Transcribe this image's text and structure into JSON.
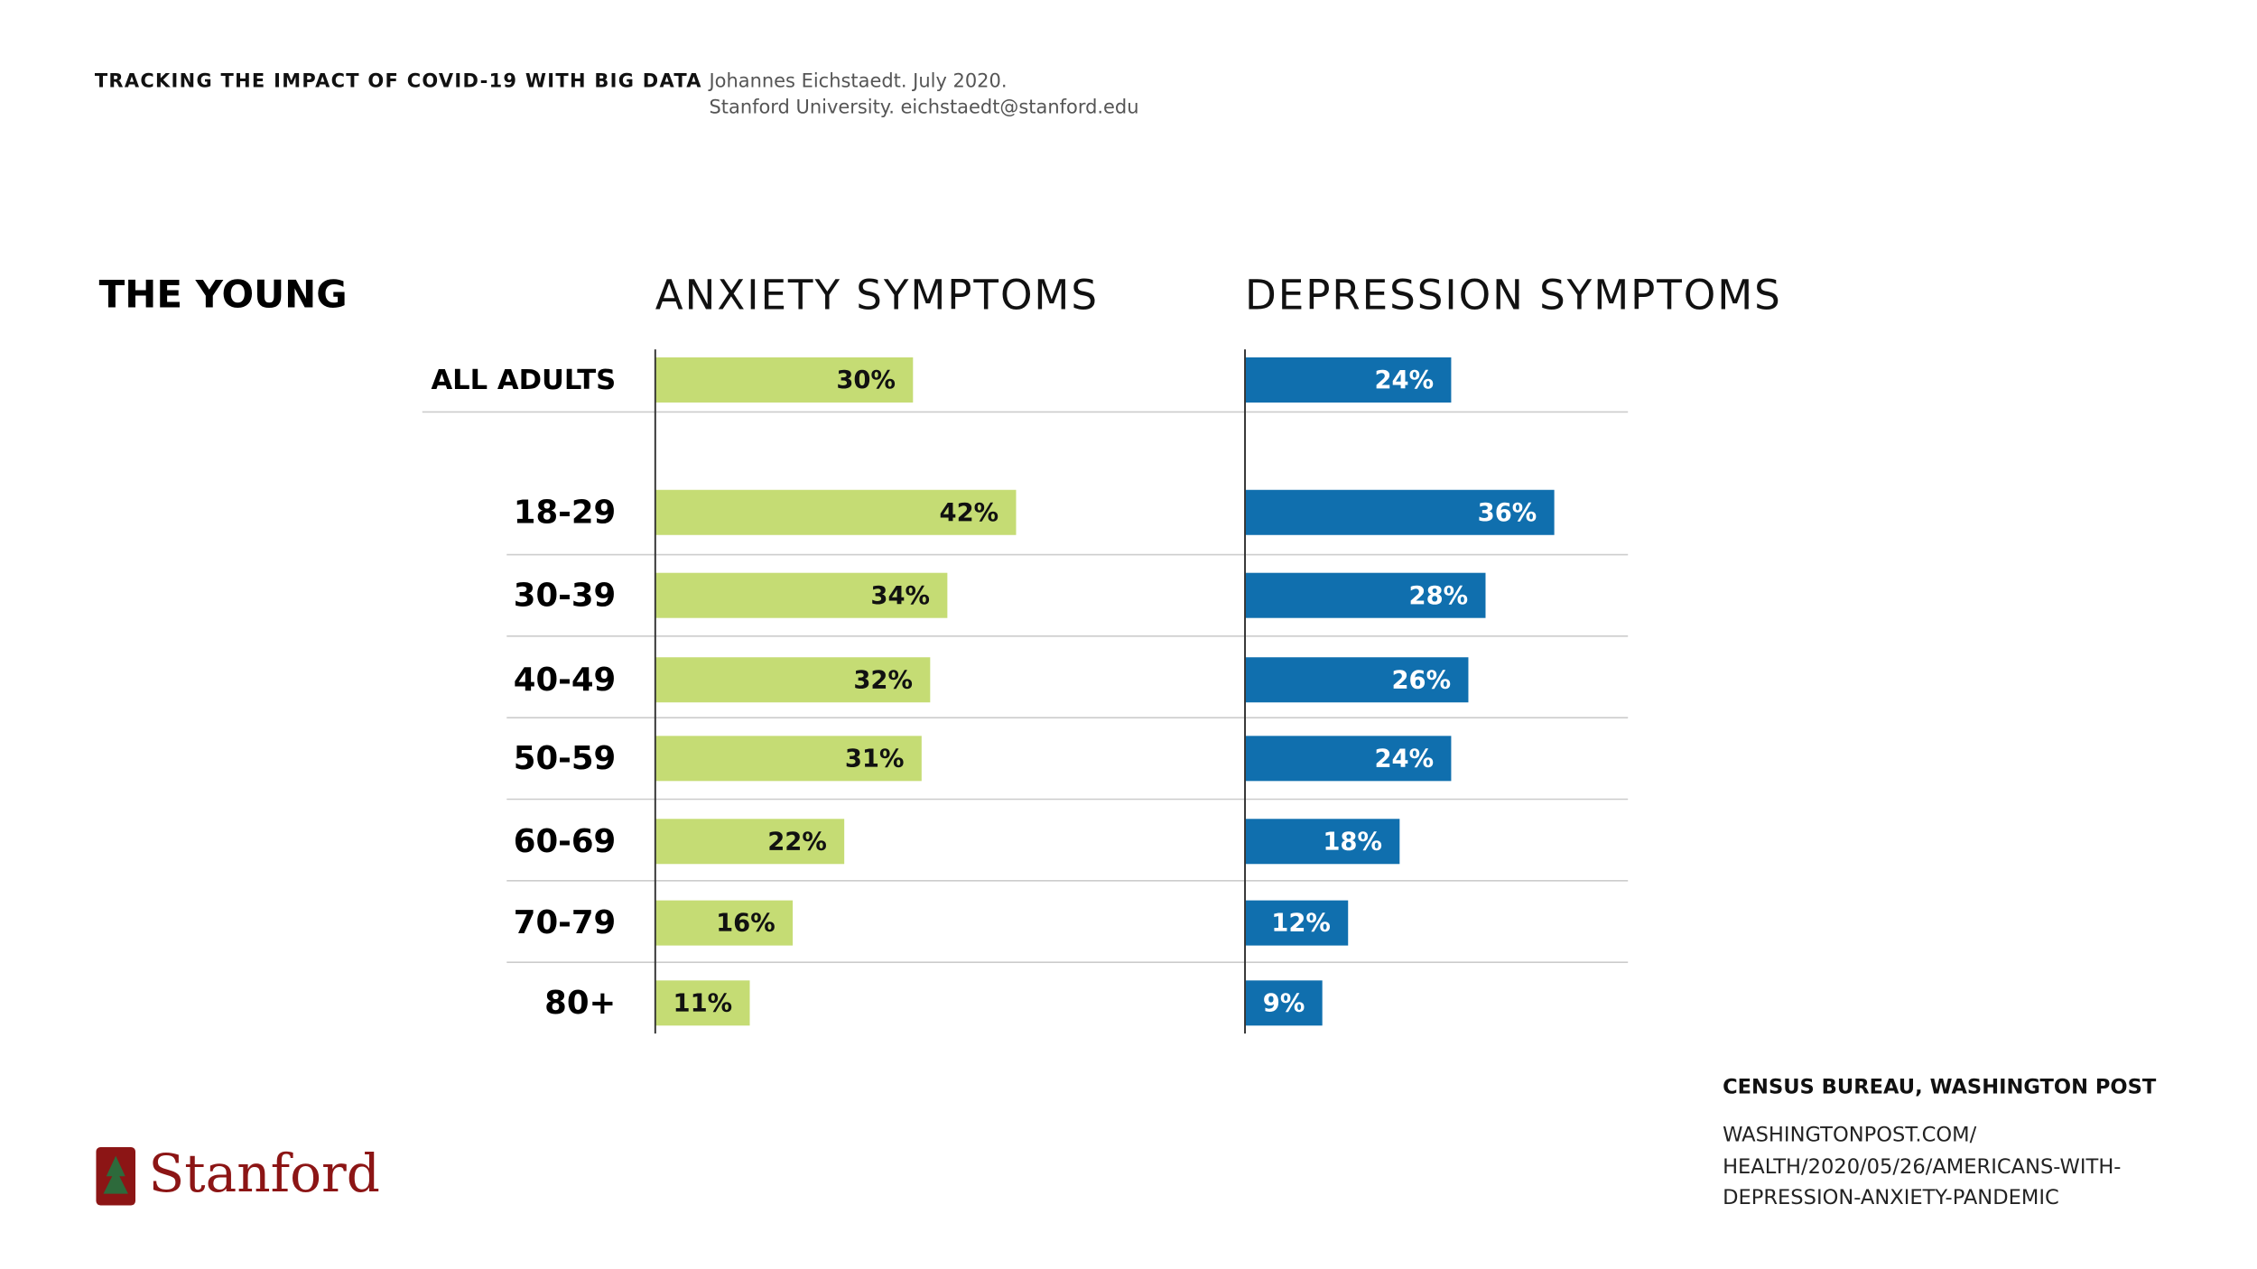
{
  "header": {
    "title": "TRACKING THE IMPACT OF COVID-19 WITH BIG DATA",
    "author": "Johannes Eichstaedt. July 2020.",
    "affiliation": "Stanford University. eichstaedt@stanford.edu"
  },
  "section_title": "THE YOUNG",
  "chart_data": [
    {
      "type": "bar",
      "title": "ANXIETY SYMPTOMS",
      "categories": [
        "ALL ADULTS",
        "18-29",
        "30-39",
        "40-49",
        "50-59",
        "60-69",
        "70-79",
        "80+"
      ],
      "values": [
        30,
        42,
        34,
        32,
        31,
        22,
        16,
        11
      ],
      "value_labels": [
        "30%",
        "42%",
        "34%",
        "32%",
        "31%",
        "22%",
        "16%",
        "11%"
      ],
      "color": "#c5dc74"
    },
    {
      "type": "bar",
      "title": "DEPRESSION SYMPTOMS",
      "values": [
        24,
        36,
        28,
        26,
        24,
        18,
        12,
        9
      ],
      "value_labels": [
        "24%",
        "36%",
        "28%",
        "26%",
        "24%",
        "18%",
        "12%",
        "9%"
      ],
      "color": "#106fae"
    }
  ],
  "source": {
    "title": "CENSUS BUREAU, WASHINGTON POST",
    "lines": [
      "WASHINGTONPOST.COM/",
      "HEALTH/2020/05/26/AMERICANS-WITH-",
      "DEPRESSION-ANXIETY-PANDEMIC"
    ]
  },
  "logo": "Stanford"
}
